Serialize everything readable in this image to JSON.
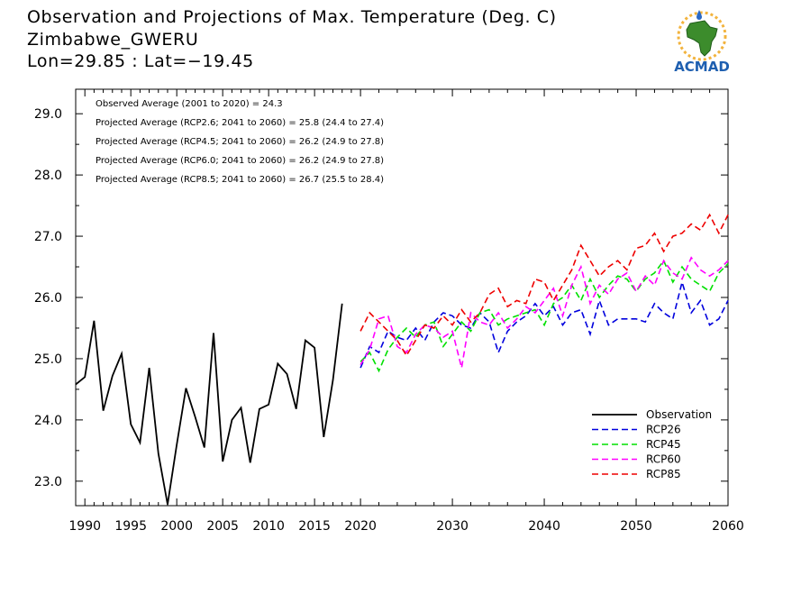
{
  "header": {
    "title_line1": "Observation and Projections of Max. Temperature (Deg. C)",
    "title_line2": "Zimbabwe_GWERU",
    "title_line3": "Lon=29.85 : Lat=−19.45"
  },
  "logo": {
    "text": "ACMAD",
    "icon": "africa-map-logo"
  },
  "chart_data": {
    "type": "line",
    "xlim": [
      1989,
      2060
    ],
    "ylim": [
      22.6,
      29.4
    ],
    "x_ticks": [
      {
        "value": 1990,
        "label": "1990"
      },
      {
        "value": 1995,
        "label": "1995"
      },
      {
        "value": 2000,
        "label": "2000"
      },
      {
        "value": 2005,
        "label": "2005"
      },
      {
        "value": 2010,
        "label": "2010"
      },
      {
        "value": 2015,
        "label": "2015"
      },
      {
        "value": 2020,
        "label": "2020"
      },
      {
        "value": 2030,
        "label": "2030"
      },
      {
        "value": 2040,
        "label": "2040"
      },
      {
        "value": 2050,
        "label": "2050"
      },
      {
        "value": 2060,
        "label": "2060"
      }
    ],
    "y_ticks": [
      {
        "value": 23.0,
        "label": "23.0"
      },
      {
        "value": 24.0,
        "label": "24.0"
      },
      {
        "value": 25.0,
        "label": "25.0"
      },
      {
        "value": 26.0,
        "label": "26.0"
      },
      {
        "value": 27.0,
        "label": "27.0"
      },
      {
        "value": 28.0,
        "label": "28.0"
      },
      {
        "value": 29.0,
        "label": "29.0"
      }
    ],
    "annotations": [
      "Observed Average (2001 to 2020) = 24.3",
      "Projected Average (RCP2.6; 2041 to 2060) = 25.8 (24.4 to 27.4)",
      "Projected Average (RCP4.5; 2041 to 2060) = 26.2 (24.9 to 27.8)",
      "Projected Average (RCP6.0; 2041 to 2060) = 26.2 (24.9 to 27.8)",
      "Projected Average (RCP8.5; 2041 to 2060) = 26.7 (25.5 to 28.4)"
    ],
    "legend_position": "bottom-right",
    "series": [
      {
        "name": "Observation",
        "color": "#000000",
        "dashed": false,
        "x_start": 1989,
        "values": [
          24.58,
          24.7,
          25.62,
          24.15,
          24.72,
          25.08,
          23.93,
          23.63,
          24.85,
          23.45,
          22.62,
          23.6,
          24.52,
          24.05,
          23.55,
          25.42,
          23.32,
          24.0,
          24.2,
          23.3,
          24.18,
          24.25,
          24.92,
          24.75,
          24.18,
          25.3,
          25.18,
          23.72,
          24.65,
          25.9
        ]
      },
      {
        "name": "RCP26",
        "color": "#0000dd",
        "dashed": true,
        "x_start": 2020,
        "values": [
          24.85,
          25.2,
          25.1,
          25.45,
          25.35,
          25.3,
          25.5,
          25.3,
          25.6,
          25.75,
          25.7,
          25.55,
          25.5,
          25.75,
          25.6,
          25.1,
          25.45,
          25.6,
          25.7,
          25.9,
          25.7,
          25.85,
          25.55,
          25.75,
          25.8,
          25.4,
          25.95,
          25.55,
          25.65,
          25.65,
          25.65,
          25.6,
          25.9,
          25.75,
          25.65,
          26.25,
          25.75,
          25.95,
          25.55,
          25.65,
          25.95
        ]
      },
      {
        "name": "RCP45",
        "color": "#00e000",
        "dashed": true,
        "x_start": 2020,
        "values": [
          24.95,
          25.1,
          24.8,
          25.15,
          25.35,
          25.5,
          25.35,
          25.55,
          25.6,
          25.2,
          25.4,
          25.6,
          25.45,
          25.75,
          25.8,
          25.55,
          25.65,
          25.7,
          25.75,
          25.8,
          25.55,
          25.9,
          26.0,
          26.2,
          25.95,
          26.3,
          26.0,
          26.2,
          26.35,
          26.3,
          26.1,
          26.3,
          26.4,
          26.6,
          26.25,
          26.5,
          26.3,
          26.2,
          26.1,
          26.4,
          26.55
        ]
      },
      {
        "name": "RCP60",
        "color": "#ff00ff",
        "dashed": true,
        "x_start": 2020,
        "values": [
          24.9,
          25.15,
          25.65,
          25.7,
          25.2,
          25.1,
          25.4,
          25.55,
          25.5,
          25.35,
          25.45,
          24.85,
          25.75,
          25.6,
          25.55,
          25.75,
          25.5,
          25.65,
          25.85,
          25.75,
          25.95,
          26.15,
          25.7,
          26.2,
          26.5,
          25.9,
          26.2,
          26.05,
          26.3,
          26.4,
          26.1,
          26.35,
          26.2,
          26.6,
          26.4,
          26.3,
          26.65,
          26.45,
          26.35,
          26.45,
          26.6
        ]
      },
      {
        "name": "RCP85",
        "color": "#ee0000",
        "dashed": true,
        "x_start": 2020,
        "values": [
          25.45,
          25.75,
          25.6,
          25.45,
          25.3,
          25.05,
          25.3,
          25.55,
          25.5,
          25.7,
          25.55,
          25.8,
          25.6,
          25.75,
          26.05,
          26.15,
          25.85,
          25.95,
          25.9,
          26.3,
          26.25,
          25.95,
          26.2,
          26.45,
          26.85,
          26.6,
          26.35,
          26.5,
          26.6,
          26.45,
          26.8,
          26.85,
          27.05,
          26.75,
          27.0,
          27.05,
          27.2,
          27.1,
          27.35,
          27.05,
          27.35
        ]
      }
    ]
  }
}
